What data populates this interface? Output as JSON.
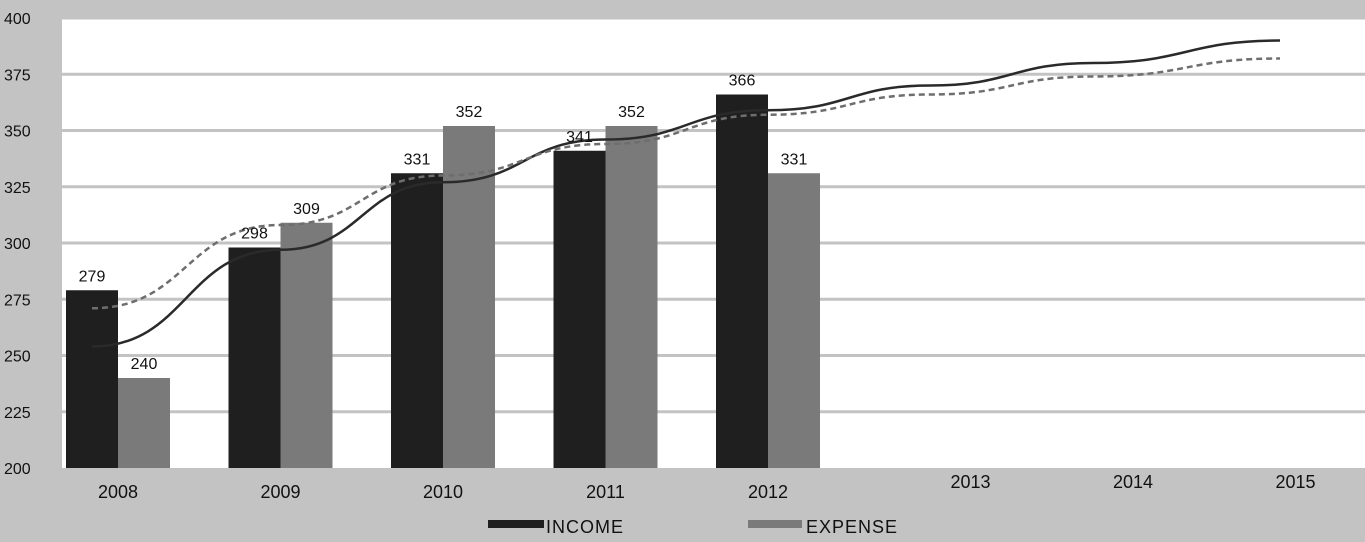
{
  "chart_data": {
    "type": "bar",
    "categories": [
      "2008",
      "2009",
      "2010",
      "2011",
      "2012",
      "2013",
      "2014",
      "2015"
    ],
    "series": [
      {
        "name": "INCOME",
        "values": [
          279,
          298,
          331,
          341,
          366,
          null,
          null,
          null
        ],
        "color": "#1f1f1f"
      },
      {
        "name": "EXPENSE",
        "values": [
          240,
          309,
          352,
          352,
          331,
          null,
          null,
          null
        ],
        "color": "#7a7a7a"
      }
    ],
    "data_labels": {
      "INCOME": [
        "279",
        "298",
        "331",
        "341",
        "366"
      ],
      "EXPENSE": [
        "240",
        "309",
        "352",
        "352",
        "331"
      ]
    },
    "trendlines": [
      {
        "series": "INCOME",
        "style": "solid",
        "color": "#2a2a2a",
        "x": [
          2008,
          2009,
          2010,
          2011,
          2012,
          2013,
          2014,
          2015
        ],
        "y": [
          254,
          297,
          327,
          346,
          359,
          370,
          380,
          390
        ]
      },
      {
        "series": "EXPENSE",
        "style": "dashed",
        "color": "#6e6e6e",
        "x": [
          2008,
          2009,
          2010,
          2011,
          2012,
          2013,
          2014,
          2015
        ],
        "y": [
          271,
          308,
          330,
          344,
          357,
          366,
          374,
          382
        ]
      }
    ],
    "ylim": [
      200,
      400
    ],
    "yticks": [
      "200",
      "225",
      "250",
      "275",
      "300",
      "325",
      "350",
      "375",
      "400"
    ],
    "grid": true,
    "legend_position": "bottom",
    "title": "",
    "xlabel": "",
    "ylabel": "",
    "background": "#c3c3c3",
    "plot_background": "#ffffff",
    "grid_color": "#c3c3c3"
  }
}
